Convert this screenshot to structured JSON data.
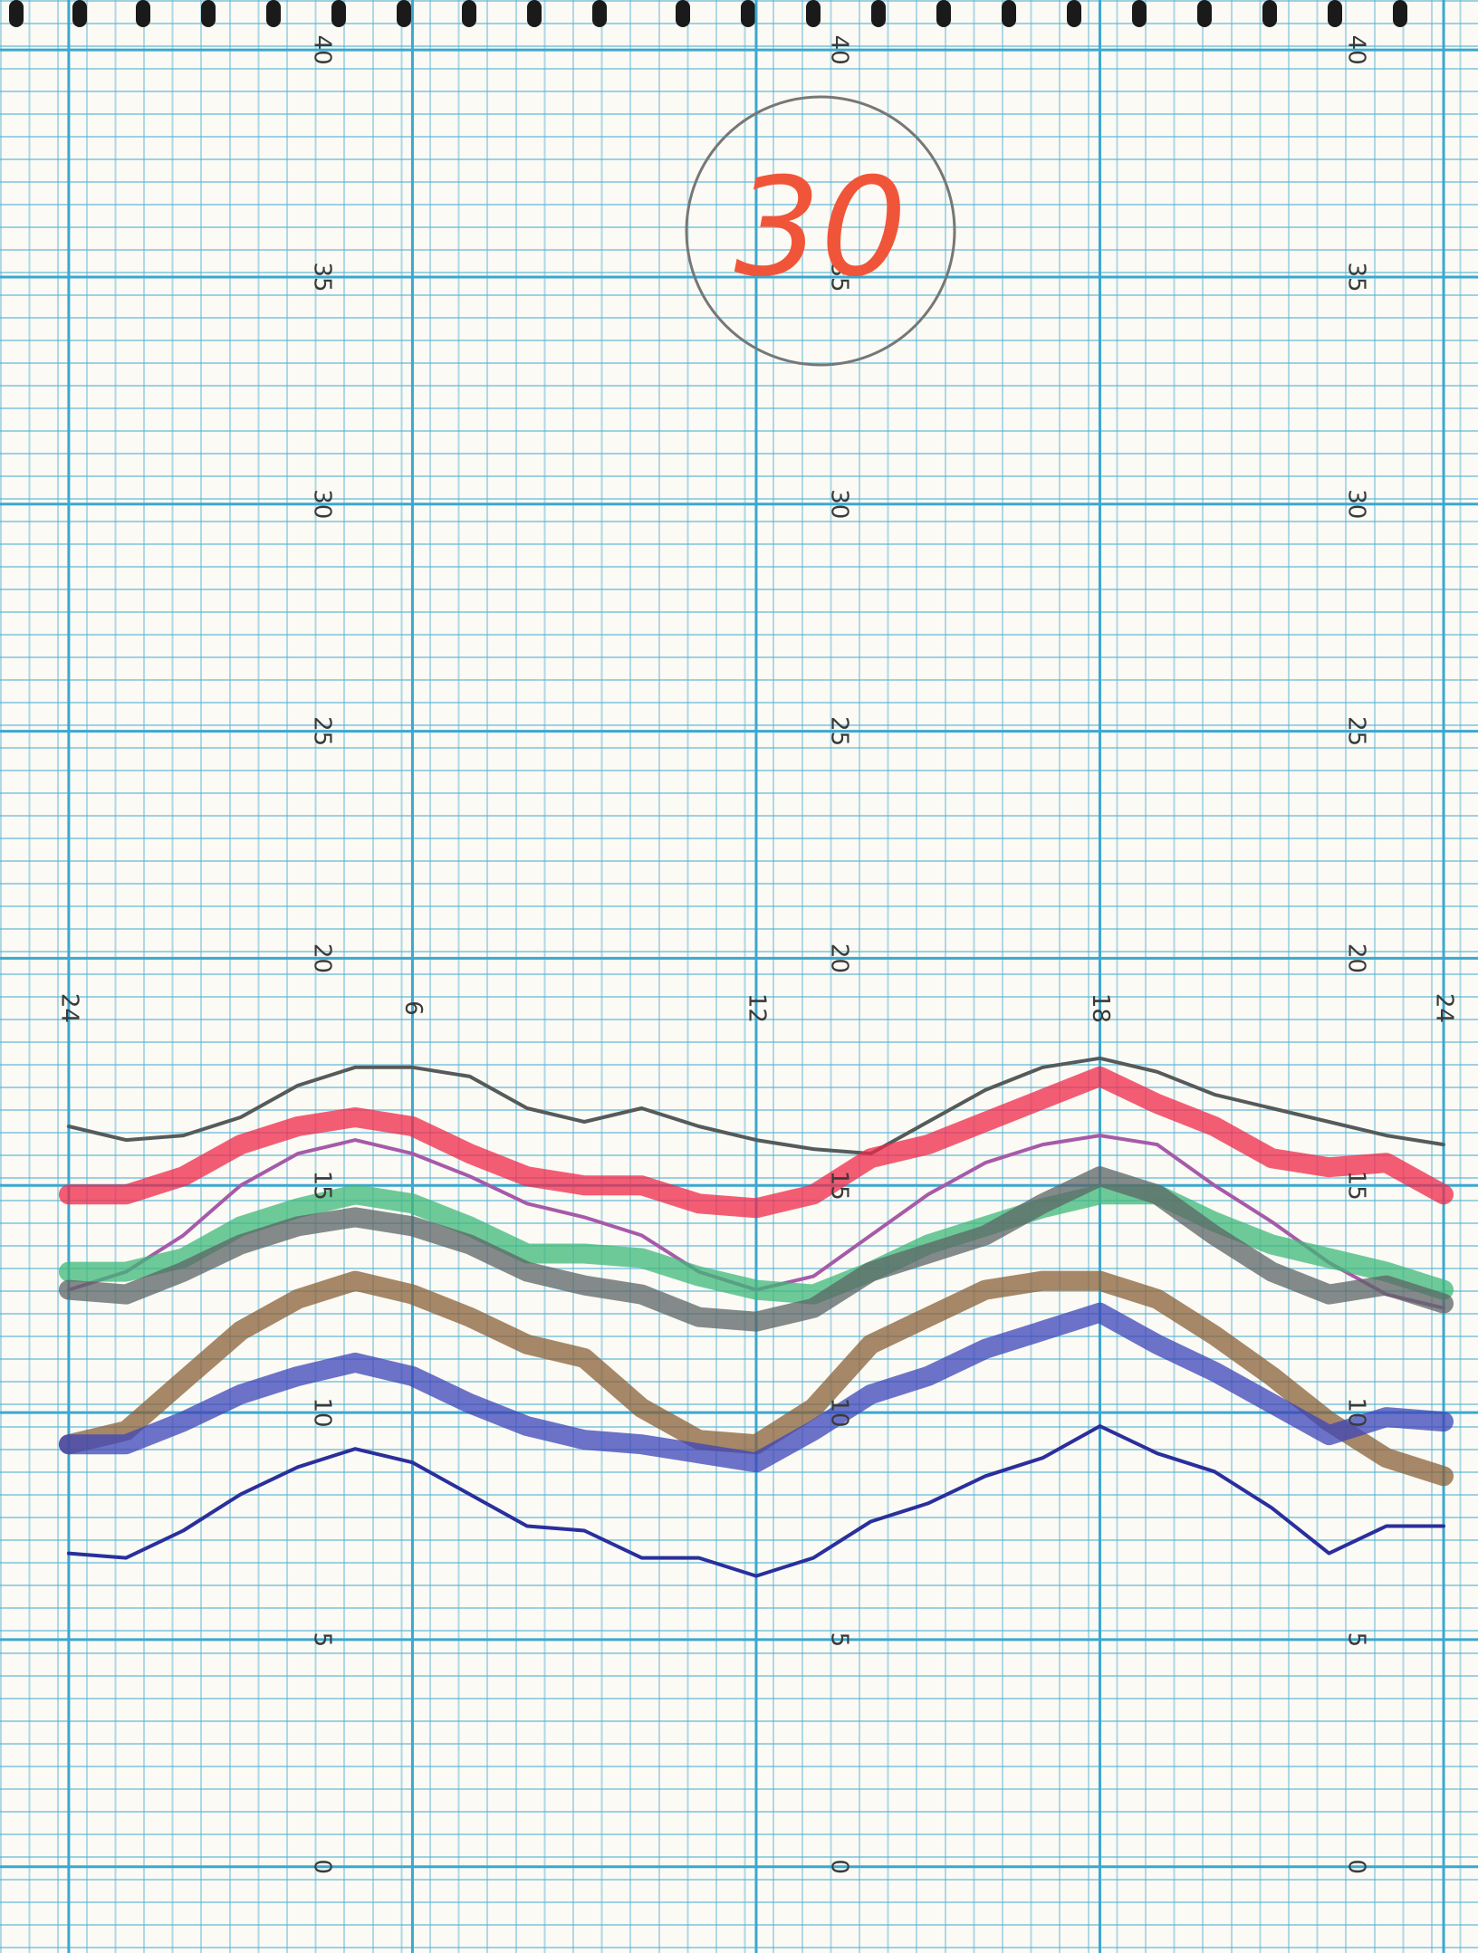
{
  "chart_data": {
    "type": "line",
    "annotation": "30",
    "x": [
      0,
      1,
      2,
      3,
      4,
      5,
      6,
      7,
      8,
      9,
      10,
      11,
      12,
      13,
      14,
      15,
      16,
      17,
      18,
      19,
      20,
      21,
      22,
      23,
      24
    ],
    "xlim": [
      -1.2,
      24.6
    ],
    "xticks": [
      {
        "value": 0,
        "label": "24"
      },
      6,
      12,
      18,
      {
        "value": 24,
        "label": "24"
      }
    ],
    "ylim": [
      -1.9,
      41.1
    ],
    "yticks": [
      0,
      5,
      10,
      15,
      20,
      25,
      30,
      35,
      40
    ],
    "grid": true,
    "series": [
      {
        "color": "#555a5a",
        "values": [
          16.3,
          16.0,
          16.1,
          16.5,
          17.2,
          17.6,
          17.6,
          17.4,
          16.7,
          16.4,
          16.7,
          16.3,
          16.0,
          15.8,
          15.7,
          16.4,
          17.1,
          17.6,
          17.8,
          17.5,
          17.0,
          16.7,
          16.4,
          16.1,
          15.9
        ]
      },
      {
        "color": "#f0284a",
        "values": [
          14.8,
          14.8,
          15.2,
          15.9,
          16.3,
          16.5,
          16.3,
          15.7,
          15.2,
          15.0,
          15.0,
          14.6,
          14.5,
          14.8,
          15.6,
          15.9,
          16.4,
          16.9,
          17.4,
          16.8,
          16.3,
          15.6,
          15.4,
          15.5,
          14.8
        ]
      },
      {
        "color": "#a65aa8",
        "values": [
          12.7,
          13.1,
          13.9,
          15.0,
          15.7,
          16.0,
          15.7,
          15.2,
          14.6,
          14.3,
          13.9,
          13.1,
          12.7,
          13.0,
          13.9,
          14.8,
          15.5,
          15.9,
          16.1,
          15.9,
          15.0,
          14.2,
          13.3,
          12.6,
          12.3
        ]
      },
      {
        "color": "#3fb87a",
        "values": [
          13.1,
          13.1,
          13.4,
          14.1,
          14.5,
          14.8,
          14.6,
          14.1,
          13.5,
          13.5,
          13.4,
          13.0,
          12.7,
          12.6,
          13.1,
          13.7,
          14.1,
          14.5,
          14.8,
          14.8,
          14.2,
          13.7,
          13.4,
          13.1,
          12.7
        ]
      },
      {
        "color": "#5c6466",
        "values": [
          12.7,
          12.6,
          13.1,
          13.7,
          14.1,
          14.3,
          14.1,
          13.7,
          13.1,
          12.8,
          12.6,
          12.1,
          12.0,
          12.3,
          13.1,
          13.5,
          13.9,
          14.6,
          15.2,
          14.8,
          13.9,
          13.1,
          12.6,
          12.8,
          12.4
        ]
      },
      {
        "color": "#8a6038",
        "values": [
          9.3,
          9.6,
          10.7,
          11.8,
          12.5,
          12.9,
          12.6,
          12.1,
          11.5,
          11.2,
          10.1,
          9.4,
          9.3,
          10.1,
          11.5,
          12.1,
          12.7,
          12.9,
          12.9,
          12.5,
          11.7,
          10.8,
          9.8,
          9.0,
          8.6
        ]
      },
      {
        "color": "#3c44b8",
        "values": [
          9.3,
          9.3,
          9.8,
          10.4,
          10.8,
          11.1,
          10.8,
          10.2,
          9.7,
          9.4,
          9.3,
          9.1,
          8.9,
          9.6,
          10.4,
          10.8,
          11.4,
          11.8,
          12.2,
          11.5,
          10.9,
          10.2,
          9.5,
          9.9,
          9.8
        ]
      },
      {
        "color": "#2a2f9c",
        "values": [
          6.9,
          6.8,
          7.4,
          8.2,
          8.8,
          9.2,
          8.9,
          8.2,
          7.5,
          7.4,
          6.8,
          6.8,
          6.4,
          6.8,
          7.6,
          8.0,
          8.6,
          9.0,
          9.7,
          9.1,
          8.7,
          7.9,
          6.9,
          7.5,
          7.5
        ]
      }
    ]
  }
}
